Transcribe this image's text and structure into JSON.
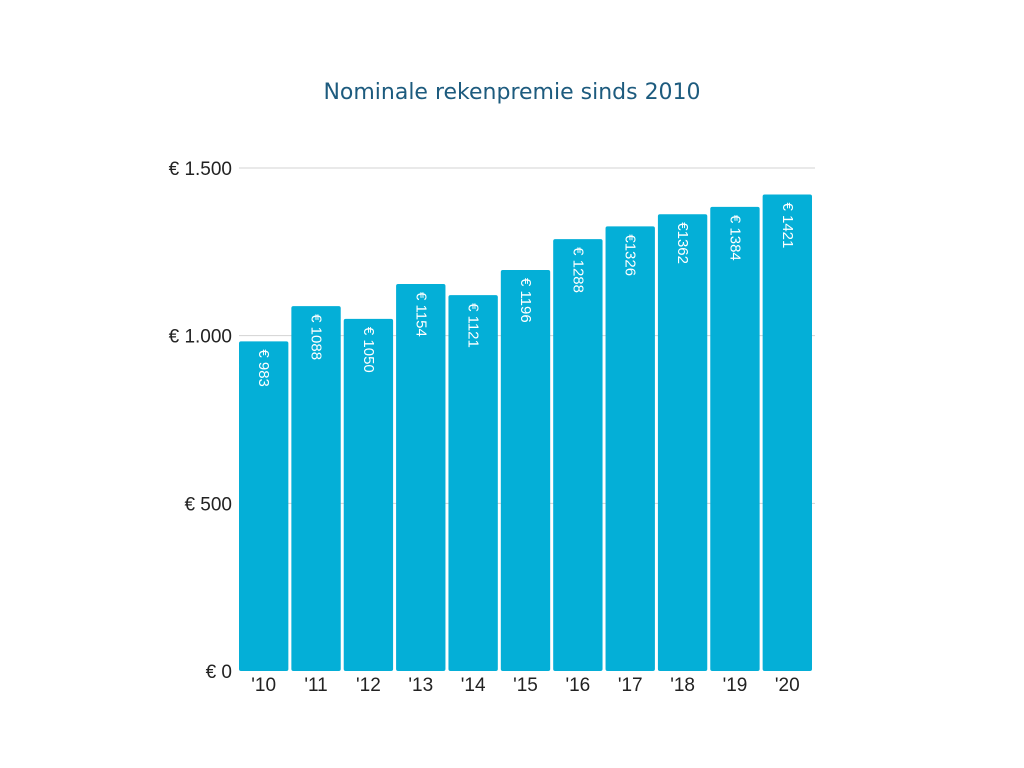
{
  "chart_data": {
    "type": "bar",
    "title": "Nominale rekenpremie sinds 2010",
    "xlabel": "",
    "ylabel": "",
    "categories": [
      "'10",
      "'11",
      "'12",
      "'13",
      "'14",
      "'15",
      "'16",
      "'17",
      "'18",
      "'19",
      "'20"
    ],
    "values": [
      983,
      1088,
      1050,
      1154,
      1121,
      1196,
      1288,
      1326,
      1362,
      1384,
      1421
    ],
    "data_labels": [
      "€ 983",
      "€ 1088",
      "€ 1050",
      "€ 1154",
      "€ 1121",
      "€ 1196",
      "€ 1288",
      "€1326",
      "€1362",
      "€ 1384",
      "€ 1421"
    ],
    "yticks": [
      0,
      500,
      1000,
      1500
    ],
    "ytick_labels": [
      "€ 0",
      "€ 500",
      "€ 1.000",
      "€ 1.500"
    ],
    "ylim": [
      0,
      1500
    ],
    "grid": true,
    "legend": "none",
    "colors": {
      "bar": "#04afd7",
      "title": "#1d5b7e",
      "grid": "#d3d3d3"
    }
  }
}
